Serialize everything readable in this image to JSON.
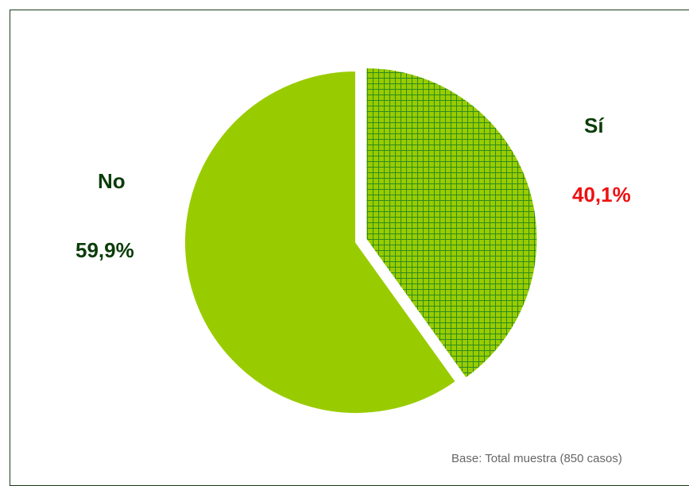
{
  "chart_data": {
    "type": "pie",
    "slices": [
      {
        "label": "Sí",
        "value": 40.1,
        "value_label": "40,1%",
        "color": "#2e8b1e",
        "pattern": "grid",
        "exploded": true,
        "label_color": "#0b3d0b",
        "value_color": "#ee1111"
      },
      {
        "label": "No",
        "value": 59.9,
        "value_label": "59,9%",
        "color": "#99cc00",
        "pattern": "solid",
        "exploded": false,
        "label_color": "#0b3d0b",
        "value_color": "#0b3d0b"
      }
    ],
    "start_angle": "12 o'clock",
    "direction": "clockwise",
    "footnote": "Base: Total muestra (850 casos)"
  },
  "colors": {
    "border": "#1a3d1a",
    "grid_pattern_fill": "#99cc00",
    "grid_pattern_lines": "#2e8b1e"
  }
}
